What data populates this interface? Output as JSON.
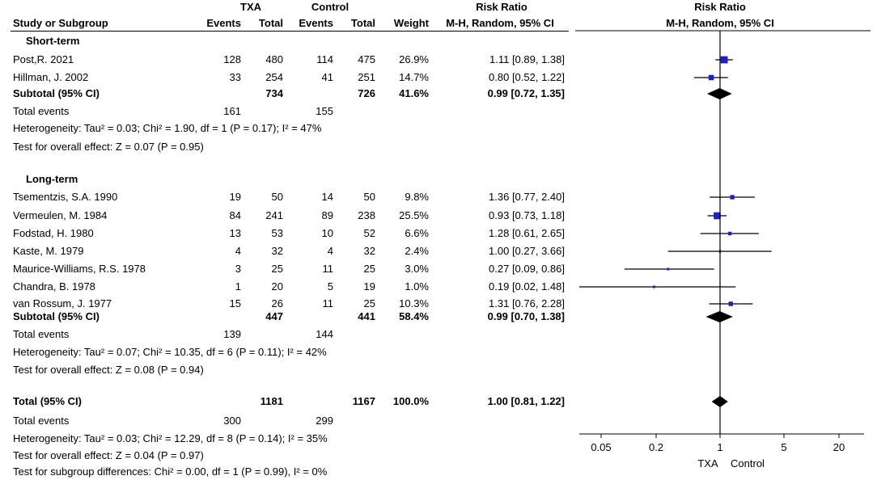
{
  "header": {
    "group1": "TXA",
    "group2": "Control",
    "risk_ratio_col": "Risk Ratio",
    "risk_ratio_plot": "Risk Ratio",
    "study_col": "Study or Subgroup",
    "events": "Events",
    "total": "Total",
    "weight": "Weight",
    "method_col": "M-H, Random, 95% CI",
    "method_plot": "M-H, Random, 95% CI"
  },
  "subgroups": [
    {
      "name": "Short-term",
      "studies": [
        {
          "study": "Post,R. 2021",
          "e1": "128",
          "n1": "480",
          "e2": "114",
          "n2": "475",
          "weight": "26.9%",
          "ci": "1.11 [0.89, 1.38]",
          "rr": 1.11,
          "lo": 0.89,
          "hi": 1.38,
          "w": 26.9
        },
        {
          "study": "Hillman, J. 2002",
          "e1": "33",
          "n1": "254",
          "e2": "41",
          "n2": "251",
          "weight": "14.7%",
          "ci": "0.80 [0.52, 1.22]",
          "rr": 0.8,
          "lo": 0.52,
          "hi": 1.22,
          "w": 14.7
        }
      ],
      "subtotal": {
        "label": "Subtotal (95% CI)",
        "n1": "734",
        "n2": "726",
        "weight": "41.6%",
        "ci": "0.99 [0.72, 1.35]",
        "rr": 0.99,
        "lo": 0.72,
        "hi": 1.35
      },
      "total_events": {
        "label": "Total events",
        "e1": "161",
        "e2": "155"
      },
      "heterogeneity": "Heterogeneity: Tau² = 0.03; Chi² = 1.90, df = 1 (P = 0.17); I² = 47%",
      "overall": "Test for overall effect: Z = 0.07 (P = 0.95)"
    },
    {
      "name": "Long-term",
      "studies": [
        {
          "study": "Tsementzis, S.A. 1990",
          "e1": "19",
          "n1": "50",
          "e2": "14",
          "n2": "50",
          "weight": "9.8%",
          "ci": "1.36 [0.77, 2.40]",
          "rr": 1.36,
          "lo": 0.77,
          "hi": 2.4,
          "w": 9.8
        },
        {
          "study": "Vermeulen, M. 1984",
          "e1": "84",
          "n1": "241",
          "e2": "89",
          "n2": "238",
          "weight": "25.5%",
          "ci": "0.93 [0.73, 1.18]",
          "rr": 0.93,
          "lo": 0.73,
          "hi": 1.18,
          "w": 25.5
        },
        {
          "study": "Fodstad, H. 1980",
          "e1": "13",
          "n1": "53",
          "e2": "10",
          "n2": "52",
          "weight": "6.6%",
          "ci": "1.28 [0.61, 2.65]",
          "rr": 1.28,
          "lo": 0.61,
          "hi": 2.65,
          "w": 6.6
        },
        {
          "study": "Kaste, M. 1979",
          "e1": "4",
          "n1": "32",
          "e2": "4",
          "n2": "32",
          "weight": "2.4%",
          "ci": "1.00 [0.27, 3.66]",
          "rr": 1.0,
          "lo": 0.27,
          "hi": 3.66,
          "w": 2.4
        },
        {
          "study": "Maurice-Williams, R.S. 1978",
          "e1": "3",
          "n1": "25",
          "e2": "11",
          "n2": "25",
          "weight": "3.0%",
          "ci": "0.27 [0.09, 0.86]",
          "rr": 0.27,
          "lo": 0.09,
          "hi": 0.86,
          "w": 3.0
        },
        {
          "study": "Chandra, B. 1978",
          "e1": "1",
          "n1": "20",
          "e2": "5",
          "n2": "19",
          "weight": "1.0%",
          "ci": "0.19 [0.02, 1.48]",
          "rr": 0.19,
          "lo": 0.02,
          "hi": 1.48,
          "w": 1.0
        },
        {
          "study": "van Rossum, J. 1977",
          "e1": "15",
          "n1": "26",
          "e2": "11",
          "n2": "25",
          "weight": "10.3%",
          "ci": "1.31 [0.76, 2.28]",
          "rr": 1.31,
          "lo": 0.76,
          "hi": 2.28,
          "w": 10.3
        }
      ],
      "subtotal": {
        "label": "Subtotal (95% CI)",
        "n1": "447",
        "n2": "441",
        "weight": "58.4%",
        "ci": "0.99 [0.70, 1.38]",
        "rr": 0.99,
        "lo": 0.7,
        "hi": 1.38
      },
      "total_events": {
        "label": "Total events",
        "e1": "139",
        "e2": "144"
      },
      "heterogeneity": "Heterogeneity: Tau² = 0.07; Chi² = 10.35, df = 6 (P = 0.11); I² = 42%",
      "overall": "Test for overall effect: Z = 0.08 (P = 0.94)"
    }
  ],
  "total": {
    "label": "Total (95% CI)",
    "n1": "1181",
    "n2": "1167",
    "weight": "100.0%",
    "ci": "1.00 [0.81, 1.22]",
    "rr": 1.0,
    "lo": 0.81,
    "hi": 1.22,
    "total_events": {
      "label": "Total events",
      "e1": "300",
      "e2": "299"
    },
    "heterogeneity": "Heterogeneity: Tau² = 0.03; Chi² = 12.29, df = 8 (P = 0.14); I² = 35%",
    "overall": "Test for overall effect: Z = 0.04 (P = 0.97)",
    "subgroup_diff": "Test for subgroup differences: Chi² = 0.00, df = 1 (P = 0.99), I² = 0%"
  },
  "axis": {
    "scale": "log",
    "ticks": [
      0.05,
      0.2,
      1,
      5,
      20
    ],
    "tick_labels": [
      "0.05",
      "0.2",
      "1",
      "5",
      "20"
    ],
    "favours_left": "TXA",
    "favours_right": "Control"
  },
  "colors": {
    "square": "#1f1fbf",
    "diamond": "#000000",
    "line": "#000000"
  },
  "chart_data": {
    "type": "scatter",
    "title": "Risk Ratio",
    "xlabel": "",
    "ylabel": "",
    "x_scale": "log",
    "xlim": [
      0.02,
      50
    ],
    "series": [
      {
        "name": "Short-term",
        "points": [
          {
            "label": "Post,R. 2021",
            "x": 1.11,
            "lo": 0.89,
            "hi": 1.38
          },
          {
            "label": "Hillman, J. 2002",
            "x": 0.8,
            "lo": 0.52,
            "hi": 1.22
          }
        ]
      },
      {
        "name": "Long-term",
        "points": [
          {
            "label": "Tsementzis, S.A. 1990",
            "x": 1.36,
            "lo": 0.77,
            "hi": 2.4
          },
          {
            "label": "Vermeulen, M. 1984",
            "x": 0.93,
            "lo": 0.73,
            "hi": 1.18
          },
          {
            "label": "Fodstad, H. 1980",
            "x": 1.28,
            "lo": 0.61,
            "hi": 2.65
          },
          {
            "label": "Kaste, M. 1979",
            "x": 1.0,
            "lo": 0.27,
            "hi": 3.66
          },
          {
            "label": "Maurice-Williams, R.S. 1978",
            "x": 0.27,
            "lo": 0.09,
            "hi": 0.86
          },
          {
            "label": "Chandra, B. 1978",
            "x": 0.19,
            "lo": 0.02,
            "hi": 1.48
          },
          {
            "label": "van Rossum, J. 1977",
            "x": 1.31,
            "lo": 0.76,
            "hi": 2.28
          }
        ]
      }
    ],
    "pooled": [
      {
        "label": "Subtotal (95% CI)",
        "x": 0.99,
        "lo": 0.72,
        "hi": 1.35
      },
      {
        "label": "Subtotal (95% CI)",
        "x": 0.99,
        "lo": 0.7,
        "hi": 1.38
      },
      {
        "label": "Total (95% CI)",
        "x": 1.0,
        "lo": 0.81,
        "hi": 1.22
      }
    ]
  }
}
